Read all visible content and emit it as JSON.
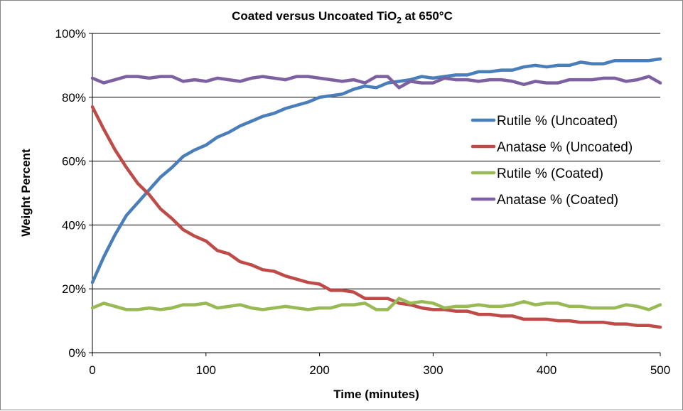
{
  "chart_data": {
    "type": "line",
    "title_main": "Coated versus Uncoated TiO",
    "title_sub": "2",
    "title_tail": " at 650°C",
    "xlabel": "Time (minutes)",
    "ylabel": "Weight Percent",
    "xlim": [
      0,
      500
    ],
    "ylim": [
      0,
      100
    ],
    "x_ticks": [
      "0",
      "100",
      "200",
      "300",
      "400",
      "500"
    ],
    "y_ticks": [
      "0%",
      "20%",
      "40%",
      "60%",
      "80%",
      "100%"
    ],
    "grid": "horizontal major lines",
    "legend_position": "right",
    "x": [
      0,
      10,
      20,
      30,
      40,
      50,
      60,
      70,
      80,
      90,
      100,
      110,
      120,
      130,
      140,
      150,
      160,
      170,
      180,
      190,
      200,
      210,
      220,
      230,
      240,
      250,
      260,
      270,
      280,
      290,
      300,
      310,
      320,
      330,
      340,
      350,
      360,
      370,
      380,
      390,
      400,
      410,
      420,
      430,
      440,
      450,
      460,
      470,
      480,
      490,
      500
    ],
    "series": [
      {
        "name": "Rutile % (Uncoated)",
        "color": "#4A7EBB",
        "values": [
          22,
          30,
          37,
          43,
          47,
          51,
          55,
          58,
          61.5,
          63.5,
          65,
          67.5,
          69,
          71,
          72.5,
          74,
          75,
          76.5,
          77.5,
          78.5,
          80,
          80.5,
          81,
          82.5,
          83.5,
          83,
          84.5,
          85,
          85.5,
          86.5,
          86,
          86.5,
          87,
          87,
          88,
          88,
          88.5,
          88.5,
          89.5,
          90,
          89.5,
          90,
          90,
          91,
          90.5,
          90.5,
          91.5,
          91.5,
          91.5,
          91.5,
          92
        ]
      },
      {
        "name": "Anatase % (Uncoated)",
        "color": "#BE4B48",
        "values": [
          77,
          70,
          63.5,
          58,
          53,
          49.5,
          45,
          42,
          38.5,
          36.5,
          35,
          32,
          31,
          28.5,
          27.5,
          26,
          25.5,
          24,
          23,
          22,
          21.5,
          19.5,
          19.5,
          19,
          17,
          17,
          17,
          15.5,
          15,
          14,
          13.5,
          13.5,
          13,
          13,
          12,
          12,
          11.5,
          11.5,
          10.5,
          10.5,
          10.5,
          10,
          10,
          9.5,
          9.5,
          9.5,
          9,
          9,
          8.5,
          8.5,
          8
        ]
      },
      {
        "name": "Rutile % (Coated)",
        "color": "#98B954",
        "values": [
          14,
          15.5,
          14.5,
          13.5,
          13.5,
          14,
          13.5,
          14,
          15,
          15,
          15.5,
          14,
          14.5,
          15,
          14,
          13.5,
          14,
          14.5,
          14,
          13.5,
          14,
          14,
          15,
          15,
          15.5,
          13.5,
          13.5,
          17,
          15.5,
          16,
          15.5,
          14,
          14.5,
          14.5,
          15,
          14.5,
          14.5,
          15,
          16,
          15,
          15.5,
          15.5,
          14.5,
          14.5,
          14,
          14,
          14,
          15,
          14.5,
          13.5,
          15
        ]
      },
      {
        "name": "Anatase % (Coated)",
        "color": "#7D60A0",
        "values": [
          86,
          84.5,
          85.5,
          86.5,
          86.5,
          86,
          86.5,
          86.5,
          85,
          85.5,
          85,
          86,
          85.5,
          85,
          86,
          86.5,
          86,
          85.5,
          86.5,
          86.5,
          86,
          85.5,
          85,
          85.5,
          84.5,
          86.5,
          86.5,
          83,
          85,
          84.5,
          84.5,
          86,
          85.5,
          85.5,
          85,
          85.5,
          85.5,
          85,
          84,
          85,
          84.5,
          84.5,
          85.5,
          85.5,
          85.5,
          86,
          86,
          85,
          85.5,
          86.5,
          84.5
        ]
      }
    ]
  }
}
